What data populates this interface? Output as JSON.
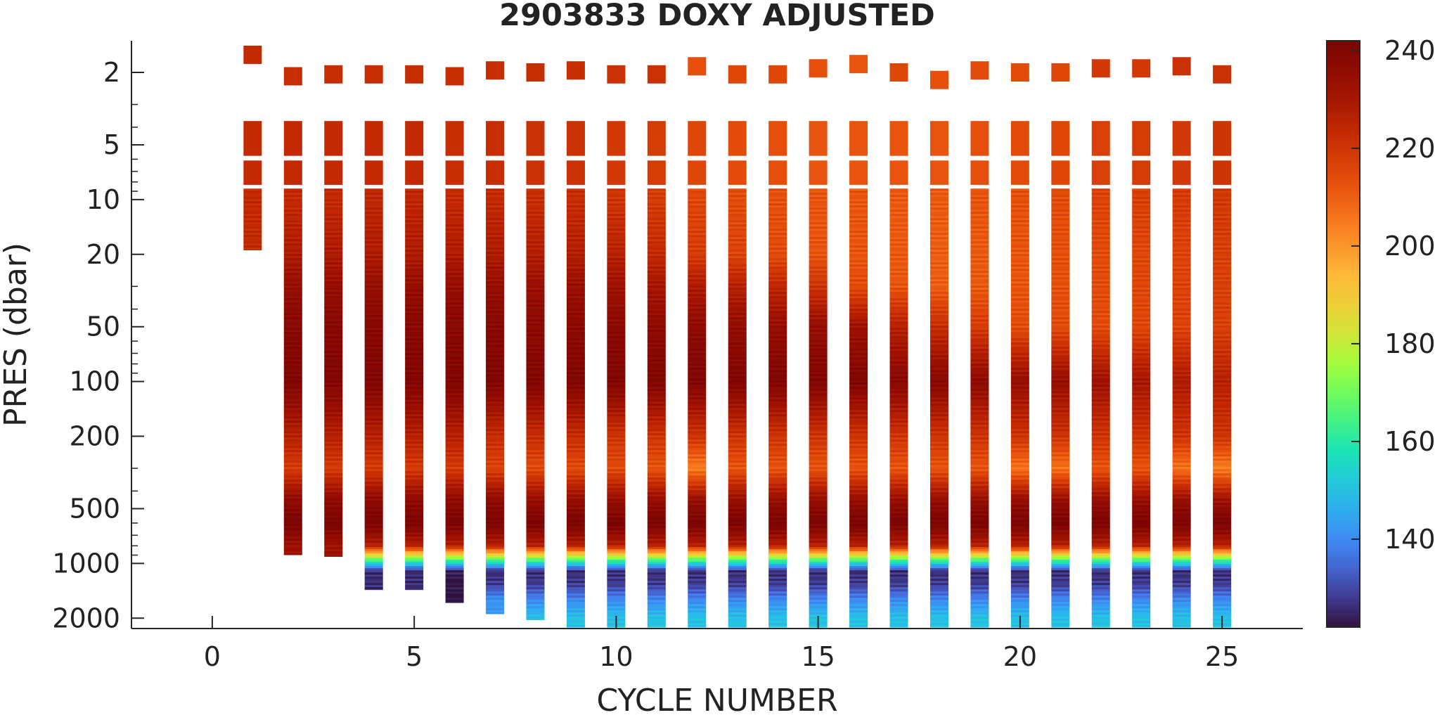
{
  "chart_data": {
    "type": "heatmap",
    "title": "2903833  DOXY ADJUSTED",
    "xlabel": "CYCLE NUMBER",
    "ylabel": "PRES (dbar)",
    "xlim": [
      -2,
      27
    ],
    "ylim": [
      1.34,
      2280
    ],
    "y_scale": "log",
    "y_reversed": true,
    "x_ticks": [
      0,
      5,
      10,
      15,
      20,
      25
    ],
    "x_tick_labels": [
      "0",
      "5",
      "10",
      "15",
      "20",
      "25"
    ],
    "y_ticks": [
      2,
      5,
      10,
      20,
      50,
      100,
      200,
      500,
      1000,
      2000
    ],
    "y_tick_labels": [
      "2",
      "5",
      "10",
      "20",
      "50",
      "100",
      "200",
      "500",
      "1000",
      "2000"
    ],
    "colorbar": {
      "limits": [
        122,
        242
      ],
      "ticks": [
        140,
        160,
        180,
        200,
        220,
        240
      ],
      "tick_labels": [
        "140",
        "160",
        "180",
        "200",
        "220",
        "240"
      ],
      "colormap": "turbo"
    },
    "grid": false,
    "cycles": [
      1,
      2,
      3,
      4,
      5,
      6,
      7,
      8,
      9,
      10,
      11,
      12,
      13,
      14,
      15,
      16,
      17,
      18,
      19,
      20,
      21,
      22,
      23,
      24,
      25
    ],
    "surface_pressure": [
      1.6,
      2.1,
      2.05,
      2.05,
      2.05,
      2.1,
      1.95,
      2.0,
      1.95,
      2.05,
      2.05,
      1.85,
      2.05,
      2.05,
      1.9,
      1.8,
      2.0,
      2.2,
      1.95,
      2.0,
      2.0,
      1.9,
      1.9,
      1.85,
      2.05
    ],
    "surface_doxy": [
      223,
      222,
      222,
      222,
      222,
      222,
      222,
      222,
      222,
      221,
      221,
      213,
      215,
      215,
      213,
      212,
      215,
      213,
      214,
      214,
      215,
      219,
      219,
      221,
      221
    ],
    "max_pressure": [
      19,
      900,
      920,
      1400,
      1400,
      1650,
      1900,
      2050,
      2250,
      2250,
      2250,
      2250,
      2250,
      2250,
      2250,
      2250,
      2250,
      2250,
      2250,
      2250,
      2250,
      2250,
      2250,
      2250,
      2250
    ],
    "profile_doxy_by_depth_levels": {
      "pressure": [
        4,
        6,
        10,
        20,
        30,
        50,
        100,
        200,
        300,
        450,
        600,
        800,
        950,
        1100,
        1300,
        1600,
        2000
      ],
      "profiles": [
        {
          "cycle": 1,
          "doxy": [
            223,
            223,
            223,
            223
          ]
        },
        {
          "cycle": 2,
          "doxy": [
            223,
            223,
            223,
            228,
            234,
            238,
            240,
            226,
            218,
            236,
            242,
            232
          ]
        },
        {
          "cycle": 3,
          "doxy": [
            223,
            223,
            223,
            228,
            234,
            238,
            240,
            226,
            218,
            236,
            242,
            232
          ]
        },
        {
          "cycle": 4,
          "doxy": [
            223,
            223,
            224,
            228,
            234,
            238,
            240,
            226,
            218,
            236,
            242,
            226,
            168,
            126
          ]
        },
        {
          "cycle": 5,
          "doxy": [
            223,
            223,
            224,
            228,
            234,
            238,
            240,
            226,
            218,
            236,
            242,
            226,
            168,
            126
          ]
        },
        {
          "cycle": 6,
          "doxy": [
            222,
            222,
            223,
            228,
            234,
            238,
            240,
            226,
            218,
            236,
            242,
            226,
            168,
            124,
            122
          ]
        },
        {
          "cycle": 7,
          "doxy": [
            222,
            222,
            223,
            228,
            234,
            238,
            240,
            222,
            216,
            236,
            242,
            226,
            168,
            126,
            128,
            142
          ]
        },
        {
          "cycle": 8,
          "doxy": [
            221,
            221,
            222,
            227,
            233,
            237,
            240,
            222,
            214,
            234,
            242,
            226,
            168,
            126,
            128,
            140,
            150
          ]
        },
        {
          "cycle": 9,
          "doxy": [
            221,
            221,
            222,
            227,
            233,
            237,
            240,
            222,
            214,
            234,
            242,
            226,
            168,
            126,
            128,
            140,
            150
          ]
        },
        {
          "cycle": 10,
          "doxy": [
            219,
            219,
            220,
            226,
            232,
            237,
            240,
            220,
            214,
            234,
            242,
            226,
            168,
            126,
            128,
            140,
            150
          ]
        },
        {
          "cycle": 11,
          "doxy": [
            218,
            218,
            218,
            223,
            230,
            236,
            240,
            220,
            212,
            234,
            242,
            226,
            168,
            126,
            128,
            140,
            150
          ]
        },
        {
          "cycle": 12,
          "doxy": [
            215,
            215,
            215,
            218,
            228,
            236,
            240,
            220,
            204,
            234,
            242,
            226,
            168,
            126,
            128,
            140,
            150
          ]
        },
        {
          "cycle": 13,
          "doxy": [
            214,
            214,
            214,
            216,
            226,
            235,
            240,
            220,
            212,
            234,
            242,
            226,
            168,
            126,
            128,
            140,
            150
          ]
        },
        {
          "cycle": 14,
          "doxy": [
            213,
            213,
            213,
            214,
            224,
            234,
            240,
            220,
            212,
            234,
            242,
            226,
            168,
            126,
            128,
            140,
            150
          ]
        },
        {
          "cycle": 15,
          "doxy": [
            212,
            212,
            212,
            212,
            220,
            234,
            240,
            220,
            212,
            234,
            242,
            226,
            168,
            126,
            128,
            140,
            150
          ]
        },
        {
          "cycle": 16,
          "doxy": [
            212,
            212,
            212,
            212,
            214,
            232,
            240,
            220,
            212,
            234,
            242,
            226,
            168,
            126,
            128,
            140,
            150
          ]
        },
        {
          "cycle": 17,
          "doxy": [
            212,
            212,
            211,
            211,
            212,
            226,
            238,
            220,
            212,
            234,
            242,
            226,
            168,
            126,
            128,
            140,
            150
          ]
        },
        {
          "cycle": 18,
          "doxy": [
            212,
            212,
            211,
            210,
            210,
            222,
            238,
            220,
            212,
            234,
            242,
            226,
            168,
            126,
            128,
            140,
            150
          ]
        },
        {
          "cycle": 19,
          "doxy": [
            213,
            213,
            212,
            211,
            211,
            218,
            236,
            220,
            212,
            234,
            242,
            226,
            168,
            126,
            128,
            140,
            150
          ]
        },
        {
          "cycle": 20,
          "doxy": [
            214,
            214,
            213,
            212,
            212,
            214,
            234,
            220,
            206,
            234,
            242,
            226,
            168,
            126,
            128,
            140,
            150
          ]
        },
        {
          "cycle": 21,
          "doxy": [
            215,
            215,
            214,
            213,
            213,
            214,
            234,
            220,
            206,
            234,
            242,
            226,
            168,
            126,
            128,
            140,
            150
          ]
        },
        {
          "cycle": 22,
          "doxy": [
            217,
            217,
            216,
            214,
            214,
            214,
            232,
            220,
            212,
            234,
            242,
            226,
            168,
            126,
            128,
            140,
            150
          ]
        },
        {
          "cycle": 23,
          "doxy": [
            218,
            218,
            217,
            215,
            215,
            215,
            230,
            220,
            212,
            234,
            242,
            226,
            168,
            126,
            128,
            140,
            150
          ]
        },
        {
          "cycle": 24,
          "doxy": [
            219,
            219,
            218,
            216,
            216,
            216,
            228,
            220,
            206,
            234,
            242,
            226,
            168,
            126,
            128,
            140,
            150
          ]
        },
        {
          "cycle": 25,
          "doxy": [
            220,
            220,
            219,
            217,
            217,
            217,
            226,
            220,
            204,
            232,
            242,
            226,
            168,
            126,
            128,
            140,
            150
          ]
        }
      ]
    }
  }
}
